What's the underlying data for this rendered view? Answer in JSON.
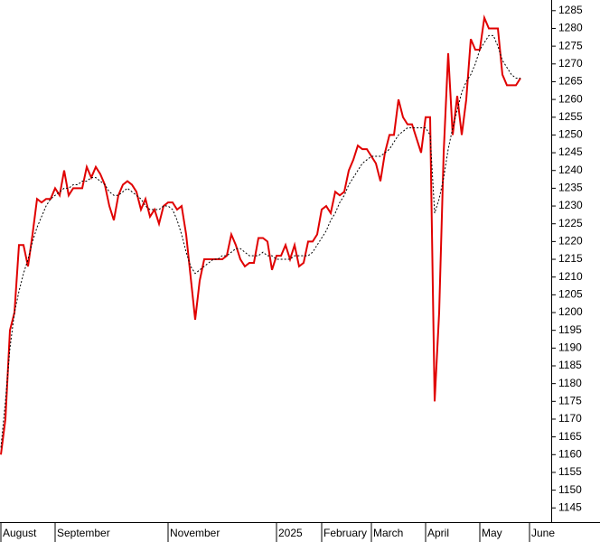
{
  "chart_data": {
    "type": "line",
    "categories": [
      "August",
      null,
      null,
      null,
      null,
      null,
      null,
      null,
      null,
      null,
      null,
      null,
      "September",
      null,
      null,
      null,
      null,
      null,
      null,
      null,
      null,
      null,
      null,
      null,
      null,
      null,
      null,
      null,
      null,
      null,
      null,
      null,
      null,
      null,
      null,
      null,
      null,
      "November",
      null,
      null,
      null,
      null,
      null,
      null,
      null,
      null,
      null,
      null,
      null,
      null,
      null,
      null,
      null,
      null,
      null,
      null,
      null,
      null,
      null,
      null,
      null,
      "2025",
      null,
      null,
      null,
      null,
      null,
      null,
      null,
      null,
      null,
      "February",
      null,
      null,
      null,
      null,
      null,
      null,
      null,
      null,
      null,
      null,
      "March",
      null,
      null,
      null,
      null,
      null,
      null,
      null,
      null,
      null,
      null,
      null,
      "April",
      null,
      null,
      null,
      null,
      null,
      null,
      null,
      null,
      null,
      null,
      null,
      "May",
      null,
      null,
      null,
      null,
      null,
      null,
      null,
      null,
      null,
      null,
      "June"
    ],
    "series": [
      {
        "color": "#e00000",
        "dash": false,
        "values": [
          1160,
          1170,
          1195,
          1200,
          1219,
          1219,
          1213,
          1222,
          1232,
          1231,
          1232,
          1232,
          1235,
          1233,
          1240,
          1233,
          1235,
          1235,
          1235,
          1241,
          1238,
          1241,
          1239,
          1236,
          1230,
          1226,
          1233,
          1236,
          1237,
          1236,
          1234,
          1229,
          1232,
          1227,
          1229,
          1225,
          1230,
          1231,
          1231,
          1229,
          1230,
          1222,
          1210,
          1198,
          1209,
          1215,
          1215,
          1215,
          1215,
          1215,
          1216,
          1222,
          1219,
          1215,
          1213,
          1214,
          1214,
          1221,
          1221,
          1220,
          1212,
          1216,
          1216,
          1219,
          1215,
          1219,
          1213,
          1214,
          1220,
          1220,
          1222,
          1229,
          1230,
          1228,
          1234,
          1233,
          1234,
          1240,
          1243,
          1247,
          1246,
          1246,
          1244,
          1242,
          1237,
          1245,
          1250,
          1250,
          1260,
          1255,
          1253,
          1253,
          1249,
          1245,
          1255,
          1255,
          1175,
          1200,
          1245,
          1273,
          1250,
          1261,
          1250,
          1260,
          1277,
          1274,
          1274,
          1283,
          1280,
          1280,
          1280,
          1267,
          1264,
          1264,
          1264,
          1266,
          null,
          null
        ]
      },
      {
        "color": "#000000",
        "dash": true,
        "values": [
          1162,
          1175,
          1190,
          1200,
          1206,
          1211,
          1215,
          1220,
          1224,
          1227,
          1230,
          1232,
          1233,
          1234,
          1235,
          1235,
          1236,
          1236,
          1237,
          1237,
          1238,
          1238,
          1237,
          1236,
          1234,
          1233,
          1233,
          1234,
          1235,
          1234,
          1233,
          1232,
          1230,
          1229,
          1229,
          1229,
          1230,
          1230,
          1229,
          1226,
          1222,
          1217,
          1213,
          1211,
          1212,
          1213,
          1214,
          1215,
          1215,
          1216,
          1216,
          1217,
          1218,
          1218,
          1217,
          1216,
          1216,
          1216,
          1217,
          1216,
          1216,
          1215,
          1215,
          1215,
          1215,
          1216,
          1216,
          1216,
          1216,
          1217,
          1219,
          1221,
          1223,
          1226,
          1228,
          1231,
          1233,
          1236,
          1238,
          1240,
          1242,
          1243,
          1244,
          1244,
          1244,
          1245,
          1246,
          1248,
          1250,
          1251,
          1252,
          1252,
          1252,
          1252,
          1252,
          1250,
          1228,
          1232,
          1238,
          1246,
          1252,
          1257,
          1262,
          1265,
          1267,
          1270,
          1274,
          1276,
          1278,
          1278,
          1275,
          1271,
          1269,
          1267,
          1266,
          1266,
          null,
          null
        ]
      }
    ],
    "ylim": [
      1141,
      1288
    ],
    "yticks": [
      1145,
      1150,
      1155,
      1160,
      1165,
      1170,
      1175,
      1180,
      1185,
      1190,
      1195,
      1200,
      1205,
      1210,
      1215,
      1220,
      1225,
      1230,
      1235,
      1240,
      1245,
      1250,
      1255,
      1260,
      1265,
      1270,
      1275,
      1280,
      1285
    ],
    "y_axis_side": "right"
  }
}
